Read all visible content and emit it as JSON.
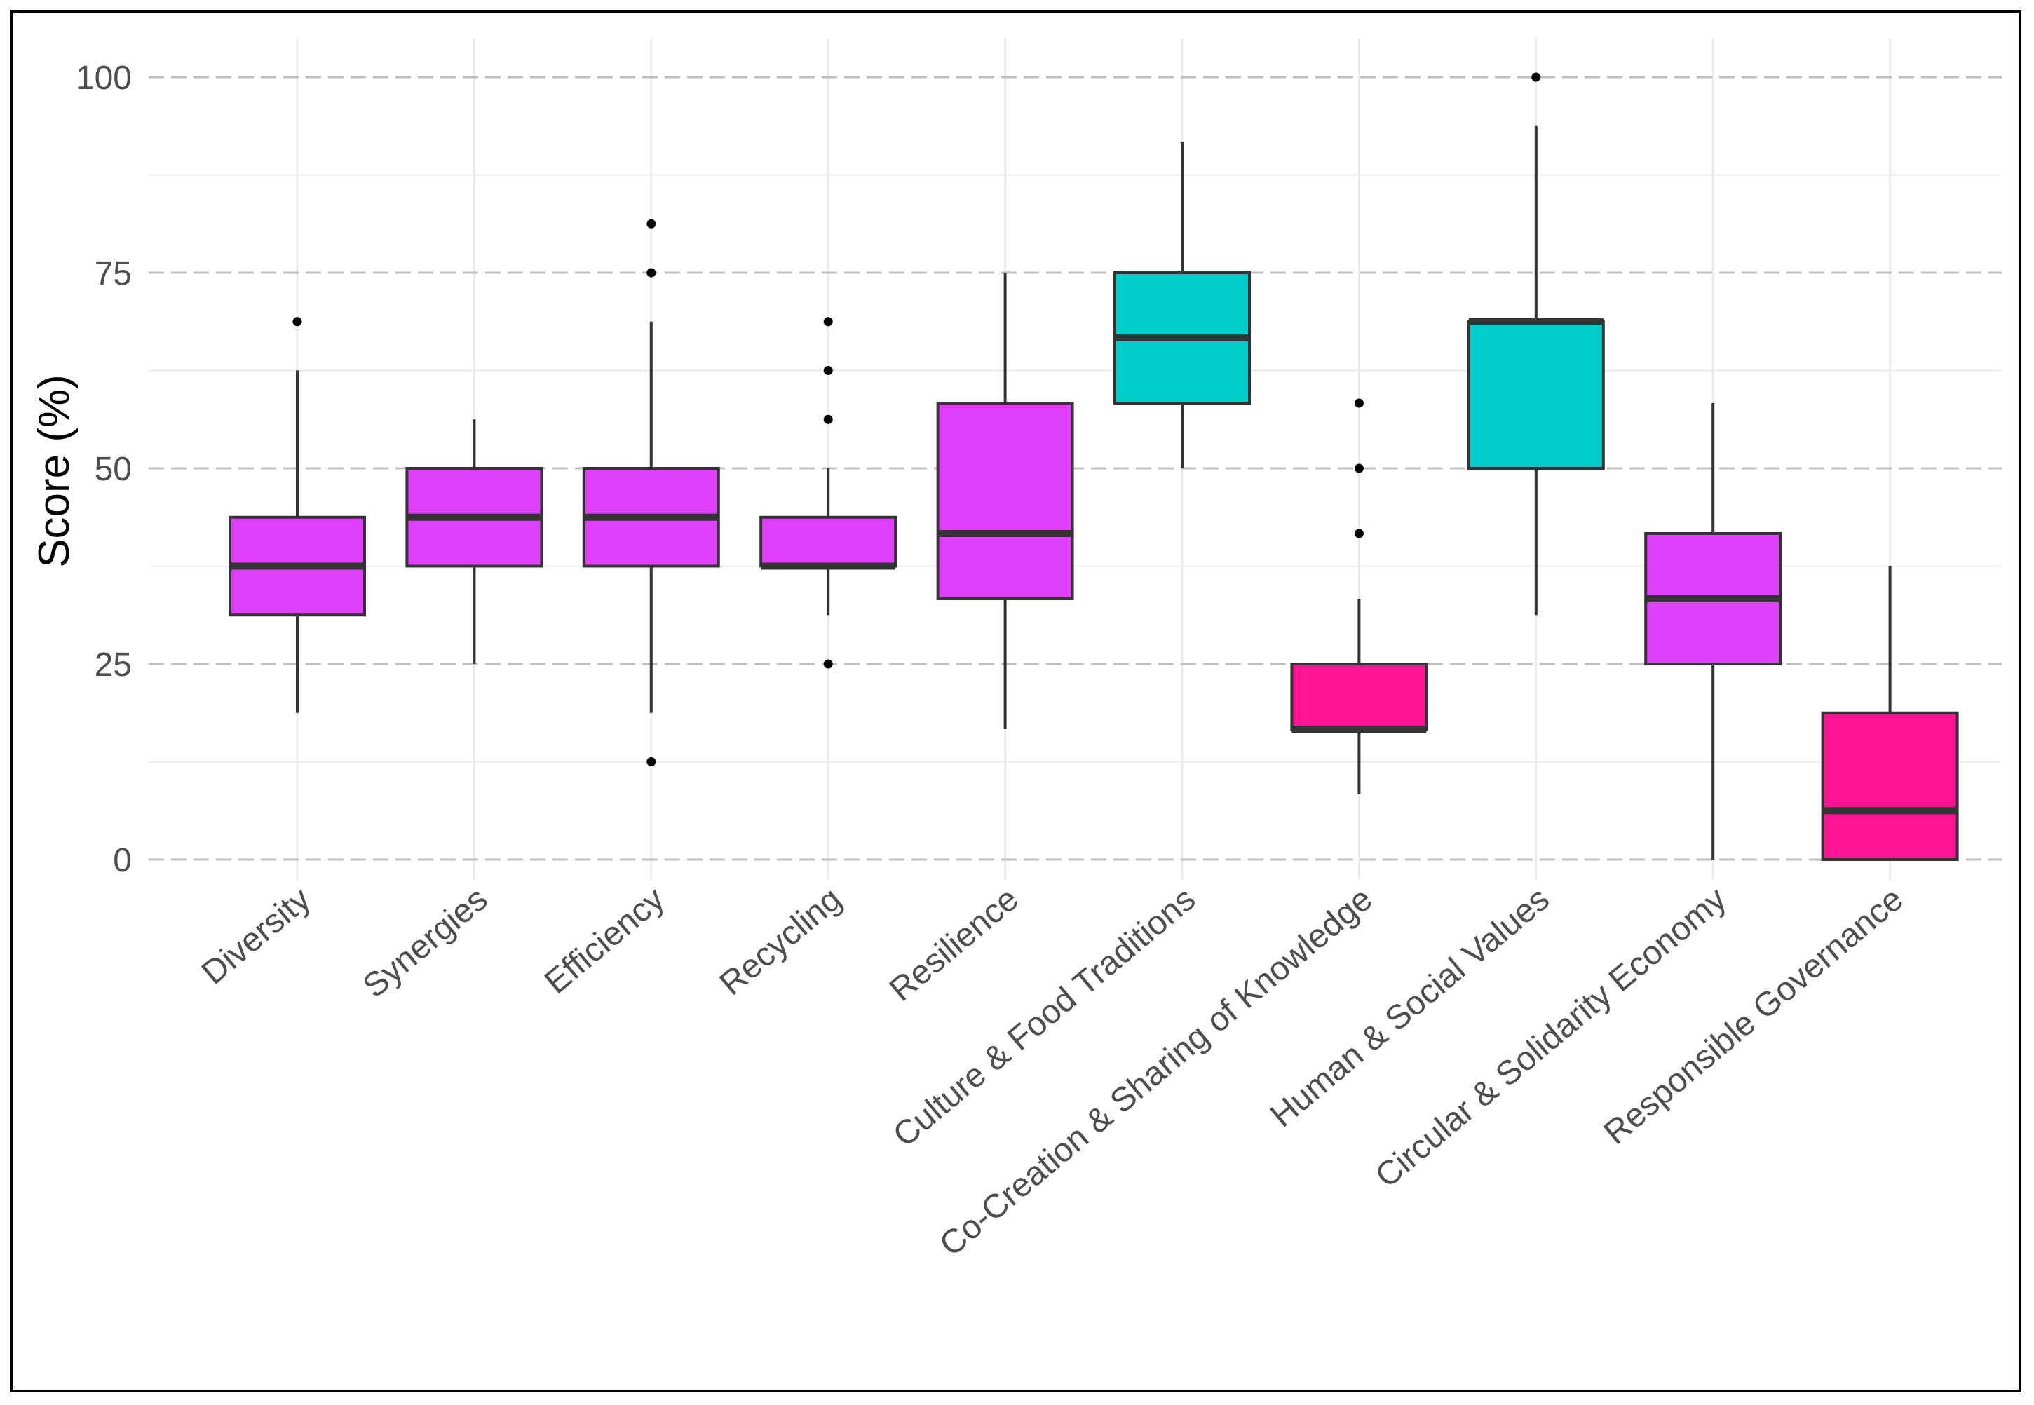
{
  "chart_data": {
    "type": "boxplot",
    "title": "",
    "xlabel": "",
    "ylabel": "Score (%)",
    "ylim": [
      -3,
      105
    ],
    "yticks": [
      0,
      25,
      50,
      75,
      100
    ],
    "ytick_labels": [
      "0",
      "25",
      "50",
      "75",
      "100"
    ],
    "grid": true,
    "legend": "none",
    "colors": {
      "purple": "#e040fb",
      "cyan": "#00cccc",
      "pink": "#ff1493",
      "box_stroke": "#333333",
      "median": "#333333",
      "outlier": "#000000",
      "grid_major": "#bdbdbd",
      "grid_minor": "#ebebeb"
    },
    "categories": [
      {
        "label": "Diversity",
        "color": "purple",
        "whisker_low": 18.75,
        "q1": 31.25,
        "median": 37.5,
        "q3": 43.75,
        "whisker_high": 62.5,
        "outliers": [
          68.75
        ]
      },
      {
        "label": "Synergies",
        "color": "purple",
        "whisker_low": 25,
        "q1": 37.5,
        "median": 43.75,
        "q3": 50,
        "whisker_high": 56.25,
        "outliers": []
      },
      {
        "label": "Efficiency",
        "color": "purple",
        "whisker_low": 18.75,
        "q1": 37.5,
        "median": 43.75,
        "q3": 50,
        "whisker_high": 68.75,
        "outliers": [
          81.25,
          75,
          12.5
        ]
      },
      {
        "label": "Recycling",
        "color": "purple",
        "whisker_low": 31.25,
        "q1": 37.5,
        "median": 37.5,
        "q3": 43.75,
        "whisker_high": 50,
        "outliers": [
          68.75,
          62.5,
          56.25,
          25
        ]
      },
      {
        "label": "Resilience",
        "color": "purple",
        "whisker_low": 16.67,
        "q1": 33.33,
        "median": 41.67,
        "q3": 58.33,
        "whisker_high": 75,
        "outliers": []
      },
      {
        "label": "Culture & Food Traditions",
        "color": "cyan",
        "whisker_low": 50,
        "q1": 58.33,
        "median": 66.67,
        "q3": 75,
        "whisker_high": 91.67,
        "outliers": []
      },
      {
        "label": "Co-Creation & Sharing of Knowledge",
        "color": "pink",
        "whisker_low": 8.33,
        "q1": 16.67,
        "median": 16.67,
        "q3": 25,
        "whisker_high": 33.33,
        "outliers": [
          58.33,
          50,
          41.67
        ]
      },
      {
        "label": "Human & Social Values",
        "color": "cyan",
        "whisker_low": 31.25,
        "q1": 50,
        "median": 68.75,
        "q3": 68.75,
        "whisker_high": 93.75,
        "outliers": [
          100
        ]
      },
      {
        "label": "Circular & Solidarity Economy",
        "color": "purple",
        "whisker_low": 0,
        "q1": 25,
        "median": 33.33,
        "q3": 41.67,
        "whisker_high": 58.33,
        "outliers": []
      },
      {
        "label": "Responsible Governance",
        "color": "pink",
        "whisker_low": 0,
        "q1": 0,
        "median": 6.25,
        "q3": 18.75,
        "whisker_high": 37.5,
        "outliers": []
      }
    ]
  }
}
